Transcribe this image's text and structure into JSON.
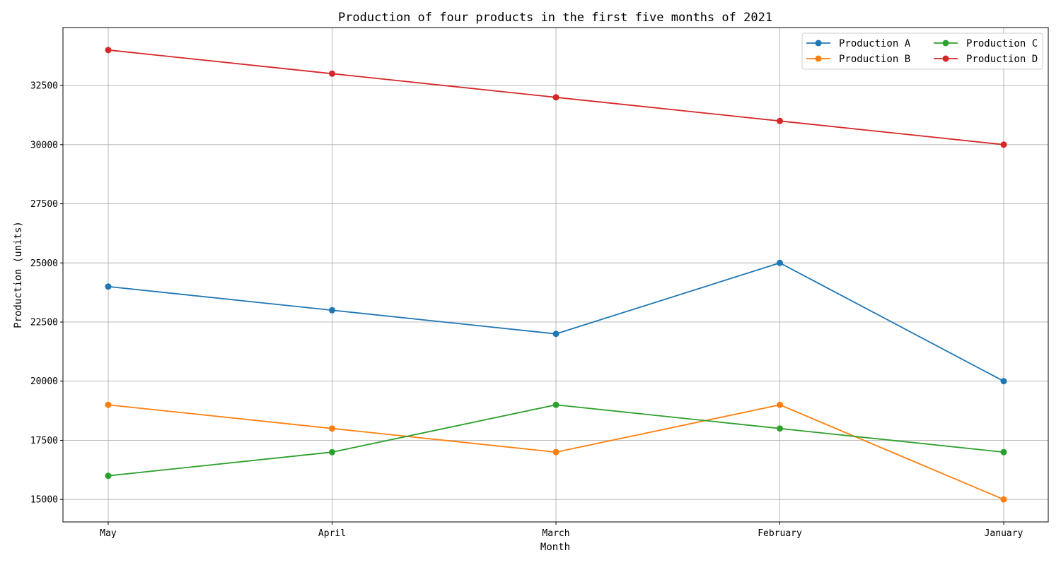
{
  "chart_data": {
    "type": "line",
    "title": "Production of four products in the first five months of 2021",
    "xlabel": "Month",
    "ylabel": "Production (units)",
    "categories": [
      "May",
      "April",
      "March",
      "February",
      "January"
    ],
    "ylim": [
      14050,
      34950
    ],
    "yticks": [
      15000,
      17500,
      20000,
      22500,
      25000,
      27500,
      30000,
      32500
    ],
    "grid": true,
    "legend_position": "top-right",
    "legend_columns": 2,
    "series": [
      {
        "name": "Production A",
        "color": "#1f77b4",
        "values": [
          24000,
          23000,
          22000,
          25000,
          20000
        ]
      },
      {
        "name": "Production B",
        "color": "#ff7f0e",
        "values": [
          19000,
          18000,
          17000,
          19000,
          15000
        ]
      },
      {
        "name": "Production C",
        "color": "#2ca02c",
        "values": [
          16000,
          17000,
          19000,
          18000,
          17000
        ]
      },
      {
        "name": "Production D",
        "color": "#d62728",
        "values": [
          34000,
          33000,
          32000,
          31000,
          30000
        ]
      }
    ]
  }
}
